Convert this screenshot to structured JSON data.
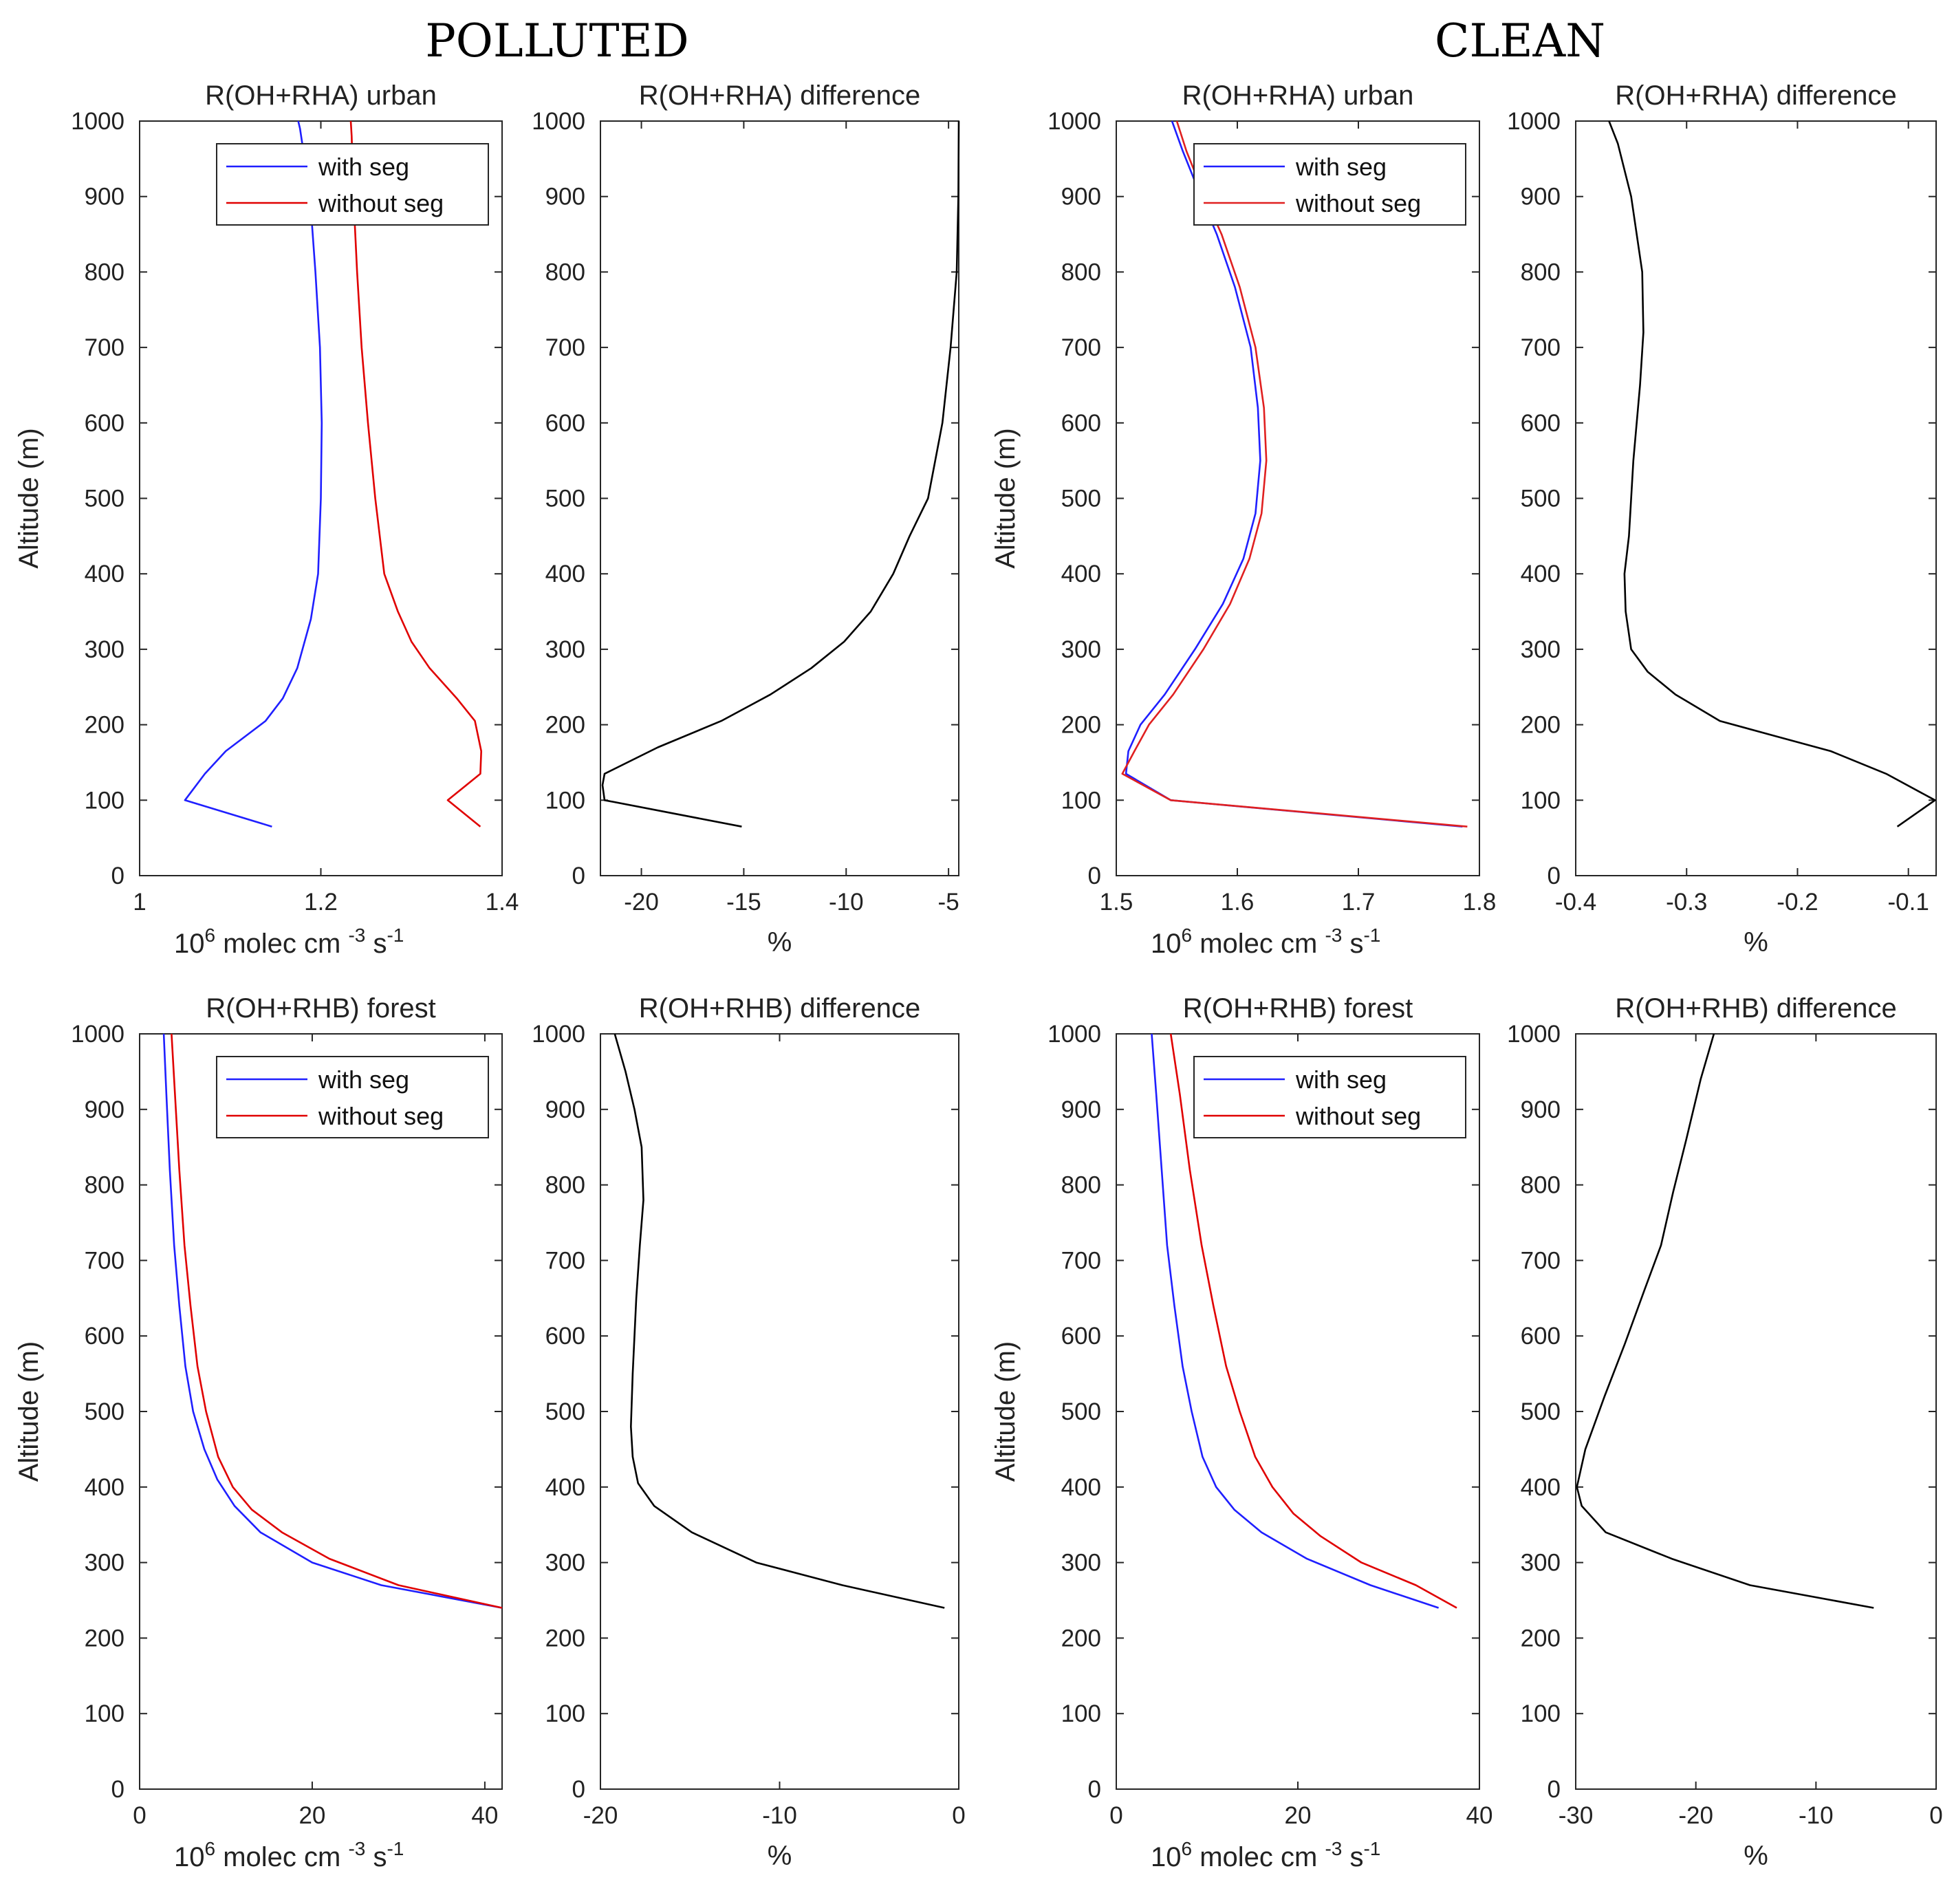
{
  "headings": {
    "polluted": "POLLUTED",
    "clean": "CLEAN"
  },
  "chart_data": [
    {
      "type": "line",
      "id": "p1",
      "title": "R(OH+RHA) urban",
      "ylabel": "Altitude (m)",
      "xlabel_base": "10",
      "xlabel_mid": "molec cm",
      "xlabel_exp1": "6",
      "xlabel_exp2": "-3",
      "xlabel_tail": "s",
      "xlabel_exp3": "-1",
      "xlim": [
        1,
        1.4
      ],
      "ylim": [
        0,
        1000
      ],
      "xticks": [
        1,
        1.2,
        1.4
      ],
      "xticklabels": [
        "1",
        "1.2",
        "1.4"
      ],
      "yticks": [
        0,
        100,
        200,
        300,
        400,
        500,
        600,
        700,
        800,
        900,
        1000
      ],
      "legend": "top-right",
      "series": [
        {
          "name": "with seg",
          "color": "#1f1fff",
          "x": [
            1.146,
            1.05,
            1.072,
            1.095,
            1.139,
            1.158,
            1.174,
            1.189,
            1.197,
            1.2,
            1.201,
            1.199,
            1.194,
            1.188,
            1.182,
            1.177,
            1.175
          ],
          "y": [
            65,
            100,
            135,
            165,
            205,
            235,
            275,
            340,
            400,
            500,
            600,
            700,
            800,
            900,
            950,
            990,
            1000
          ]
        },
        {
          "name": "without seg",
          "color": "#e00000",
          "x": [
            1.376,
            1.34,
            1.376,
            1.377,
            1.37,
            1.35,
            1.32,
            1.3,
            1.285,
            1.27,
            1.26,
            1.252,
            1.245,
            1.24,
            1.236,
            1.234,
            1.233
          ],
          "y": [
            65,
            100,
            135,
            165,
            205,
            235,
            275,
            310,
            350,
            400,
            500,
            600,
            700,
            800,
            900,
            980,
            1000
          ]
        }
      ]
    },
    {
      "type": "line",
      "id": "p2",
      "title": "R(OH+RHA) difference",
      "xlabel": "%",
      "xlim": [
        -22,
        -4.5
      ],
      "ylim": [
        0,
        1000
      ],
      "xticks": [
        -20,
        -15,
        -10,
        -5
      ],
      "xticklabels": [
        "-20",
        "-15",
        "-10",
        "-5"
      ],
      "yticks": [
        0,
        100,
        200,
        300,
        400,
        500,
        600,
        700,
        800,
        900,
        1000
      ],
      "series": [
        {
          "name": "",
          "color": "#000000",
          "x": [
            -15.1,
            -21.8,
            -21.9,
            -21.8,
            -19.2,
            -16.1,
            -13.7,
            -11.7,
            -10.1,
            -8.8,
            -7.7,
            -6.9,
            -6.0,
            -5.3,
            -4.9,
            -4.6,
            -4.52,
            -4.5
          ],
          "y": [
            65,
            100,
            120,
            135,
            170,
            205,
            240,
            275,
            310,
            350,
            400,
            450,
            500,
            600,
            700,
            800,
            900,
            1000
          ]
        }
      ]
    },
    {
      "type": "line",
      "id": "p3",
      "title": "R(OH+RHA) urban",
      "ylabel": "Altitude (m)",
      "xlabel_base": "10",
      "xlabel_mid": "molec cm",
      "xlabel_exp1": "6",
      "xlabel_exp2": "-3",
      "xlabel_tail": "s",
      "xlabel_exp3": "-1",
      "xlim": [
        1.5,
        1.8
      ],
      "ylim": [
        0,
        1000
      ],
      "xticks": [
        1.5,
        1.6,
        1.7,
        1.8
      ],
      "xticklabels": [
        "1.5",
        "1.6",
        "1.7",
        "1.8"
      ],
      "yticks": [
        0,
        100,
        200,
        300,
        400,
        500,
        600,
        700,
        800,
        900,
        1000
      ],
      "legend": "top-right",
      "series": [
        {
          "name": "with seg",
          "color": "#1f1fff",
          "x": [
            1.786,
            1.545,
            1.508,
            1.51,
            1.52,
            1.54,
            1.565,
            1.588,
            1.605,
            1.615,
            1.619,
            1.617,
            1.611,
            1.598,
            1.583,
            1.57,
            1.555,
            1.546
          ],
          "y": [
            65,
            100,
            135,
            165,
            200,
            240,
            300,
            360,
            420,
            480,
            550,
            620,
            700,
            780,
            850,
            900,
            960,
            1000
          ]
        },
        {
          "name": "without seg",
          "color": "#e02020",
          "x": [
            1.79,
            1.545,
            1.505,
            1.515,
            1.527,
            1.547,
            1.572,
            1.594,
            1.61,
            1.62,
            1.624,
            1.622,
            1.615,
            1.602,
            1.587,
            1.573,
            1.558,
            1.55
          ],
          "y": [
            65,
            100,
            135,
            165,
            200,
            240,
            300,
            360,
            420,
            480,
            550,
            620,
            700,
            780,
            850,
            900,
            960,
            1000
          ]
        }
      ]
    },
    {
      "type": "line",
      "id": "p4",
      "title": "R(OH+RHA) difference",
      "xlabel": "%",
      "xlim": [
        -0.4,
        -0.075
      ],
      "ylim": [
        0,
        1000
      ],
      "xticks": [
        -0.4,
        -0.3,
        -0.2,
        -0.1
      ],
      "xticklabels": [
        "-0.4",
        "-0.3",
        "-0.2",
        "-0.1"
      ],
      "yticks": [
        0,
        100,
        200,
        300,
        400,
        500,
        600,
        700,
        800,
        900,
        1000
      ],
      "series": [
        {
          "name": "",
          "color": "#000000",
          "x": [
            -0.11,
            -0.076,
            -0.12,
            -0.17,
            -0.22,
            -0.27,
            -0.31,
            -0.335,
            -0.35,
            -0.355,
            -0.356,
            -0.352,
            -0.348,
            -0.342,
            -0.339,
            -0.34,
            -0.35,
            -0.362,
            -0.37
          ],
          "y": [
            65,
            100,
            135,
            165,
            185,
            205,
            240,
            270,
            300,
            350,
            400,
            450,
            550,
            650,
            720,
            800,
            900,
            970,
            1000
          ]
        }
      ]
    },
    {
      "type": "line",
      "id": "p5",
      "title": "R(OH+RHB) forest",
      "ylabel": "Altitude (m)",
      "xlabel_base": "10",
      "xlabel_mid": "molec cm",
      "xlabel_exp1": "6",
      "xlabel_exp2": "-3",
      "xlabel_tail": "s",
      "xlabel_exp3": "-1",
      "xlim": [
        0,
        42
      ],
      "ylim": [
        0,
        1000
      ],
      "xticks": [
        0,
        20,
        40
      ],
      "xticklabels": [
        "0",
        "20",
        "40"
      ],
      "yticks": [
        0,
        100,
        200,
        300,
        400,
        500,
        600,
        700,
        800,
        900,
        1000
      ],
      "legend": "top-right",
      "series": [
        {
          "name": "with seg",
          "color": "#1f1fff",
          "x": [
            42,
            28,
            20,
            14,
            11,
            9,
            7.5,
            6.2,
            5.3,
            4.6,
            4.0,
            3.5,
            3.1,
            2.8
          ],
          "y": [
            240,
            270,
            300,
            340,
            375,
            410,
            450,
            500,
            560,
            640,
            720,
            820,
            920,
            1000
          ]
        },
        {
          "name": "without seg",
          "color": "#e00000",
          "x": [
            42,
            30,
            22,
            16.5,
            13,
            10.8,
            9.1,
            7.7,
            6.7,
            5.9,
            5.2,
            4.6,
            4.1,
            3.7
          ],
          "y": [
            240,
            270,
            305,
            340,
            370,
            400,
            440,
            500,
            560,
            640,
            720,
            820,
            920,
            1000
          ]
        }
      ]
    },
    {
      "type": "line",
      "id": "p6",
      "title": "R(OH+RHB) difference",
      "xlabel": "%",
      "xlim": [
        -20,
        0
      ],
      "ylim": [
        0,
        1000
      ],
      "xticks": [
        -20,
        -10,
        0
      ],
      "xticklabels": [
        "-20",
        "-10",
        "0"
      ],
      "yticks": [
        0,
        100,
        200,
        300,
        400,
        500,
        600,
        700,
        800,
        900,
        1000
      ],
      "series": [
        {
          "name": "",
          "color": "#000000",
          "x": [
            -0.8,
            -6.5,
            -11.3,
            -14.9,
            -17.0,
            -17.9,
            -18.2,
            -18.3,
            -18.2,
            -18.0,
            -17.8,
            -17.6,
            -17.7,
            -18.1,
            -18.6,
            -19.2
          ],
          "y": [
            240,
            270,
            300,
            340,
            375,
            405,
            440,
            480,
            550,
            650,
            720,
            780,
            850,
            900,
            950,
            1000
          ]
        }
      ]
    },
    {
      "type": "line",
      "id": "p7",
      "title": "R(OH+RHB) forest",
      "ylabel": "Altitude (m)",
      "xlabel_base": "10",
      "xlabel_mid": "molec cm",
      "xlabel_exp1": "6",
      "xlabel_exp2": "-3",
      "xlabel_tail": "s",
      "xlabel_exp3": "-1",
      "xlim": [
        0,
        40
      ],
      "ylim": [
        0,
        1000
      ],
      "xticks": [
        0,
        20,
        40
      ],
      "xticklabels": [
        "0",
        "20",
        "40"
      ],
      "yticks": [
        0,
        100,
        200,
        300,
        400,
        500,
        600,
        700,
        800,
        900,
        1000
      ],
      "legend": "top-right",
      "series": [
        {
          "name": "with seg",
          "color": "#1f1fff",
          "x": [
            35.5,
            28,
            21,
            16,
            13,
            11,
            9.5,
            8.3,
            7.3,
            6.4,
            5.6,
            5.0,
            4.4,
            3.9
          ],
          "y": [
            240,
            270,
            305,
            340,
            370,
            400,
            440,
            500,
            560,
            640,
            720,
            820,
            920,
            1000
          ]
        },
        {
          "name": "without seg",
          "color": "#e00000",
          "x": [
            37.5,
            33,
            27,
            22.5,
            19.5,
            17.2,
            15.3,
            13.6,
            12.1,
            10.7,
            9.4,
            8.1,
            7.0,
            6.0
          ],
          "y": [
            240,
            270,
            300,
            335,
            365,
            400,
            440,
            500,
            560,
            640,
            720,
            820,
            920,
            1000
          ]
        }
      ]
    },
    {
      "type": "line",
      "id": "p8",
      "title": "R(OH+RHB) difference",
      "xlabel": "%",
      "xlim": [
        -30,
        0
      ],
      "ylim": [
        0,
        1000
      ],
      "xticks": [
        -30,
        -20,
        -10,
        0
      ],
      "xticklabels": [
        "-30",
        "-20",
        "-10",
        "0"
      ],
      "yticks": [
        0,
        100,
        200,
        300,
        400,
        500,
        600,
        700,
        800,
        900,
        1000
      ],
      "series": [
        {
          "name": "",
          "color": "#000000",
          "x": [
            -5.2,
            -15.5,
            -22,
            -27.5,
            -29.5,
            -29.9,
            -29.2,
            -27.6,
            -25.9,
            -24.3,
            -22.9,
            -21.9,
            -20.8,
            -19.6,
            -18.5
          ],
          "y": [
            240,
            270,
            305,
            340,
            375,
            400,
            450,
            520,
            590,
            660,
            720,
            790,
            860,
            940,
            1000
          ]
        }
      ]
    }
  ]
}
